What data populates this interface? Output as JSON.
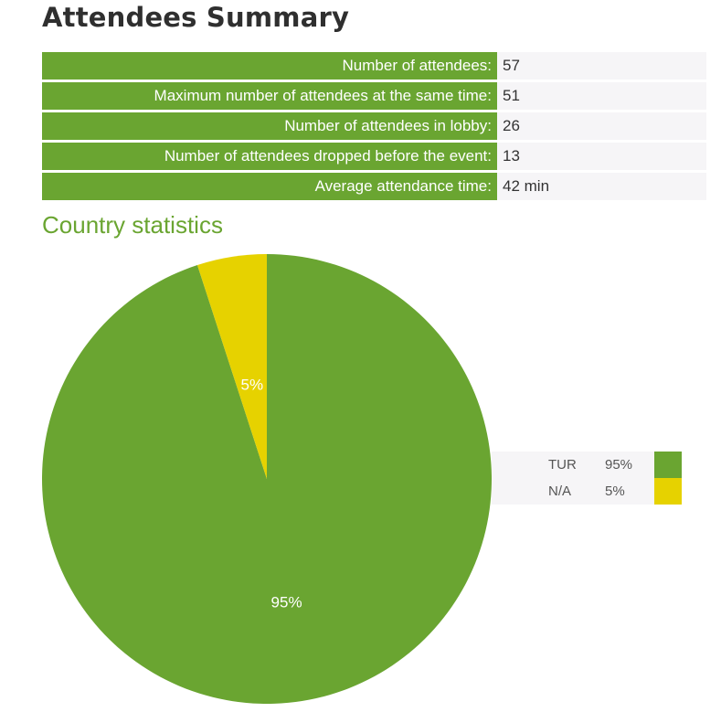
{
  "page_title": "Attendees Summary",
  "summary": [
    {
      "label": "Number of attendees:",
      "value": "57"
    },
    {
      "label": "Maximum number of attendees at the same time:",
      "value": "51"
    },
    {
      "label": "Number of attendees in lobby:",
      "value": "26"
    },
    {
      "label": "Number of attendees dropped before the event:",
      "value": "13"
    },
    {
      "label": "Average attendance time:",
      "value": "42 min"
    }
  ],
  "section_title": "Country statistics",
  "colors": {
    "accent": "#6aa531",
    "secondary": "#e6d200",
    "row_bg": "#f6f5f7"
  },
  "chart_data": {
    "type": "pie",
    "slices": [
      {
        "name": "TUR",
        "value": 95,
        "label": "95%",
        "color": "#6aa531"
      },
      {
        "name": "N/A",
        "value": 5,
        "label": "5%",
        "color": "#e6d200"
      }
    ],
    "start_angle": "top, clockwise",
    "legend_position": "right"
  }
}
